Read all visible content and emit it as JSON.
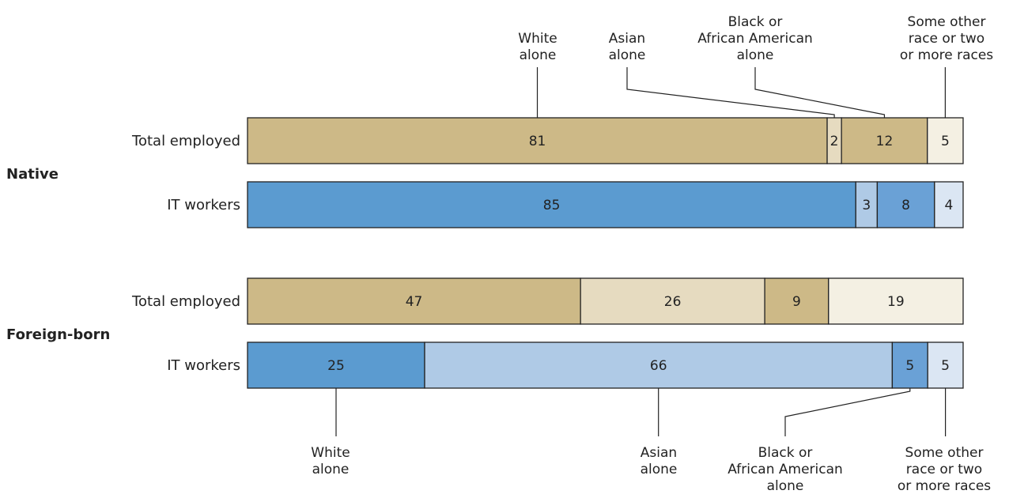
{
  "chart_data": {
    "type": "bar",
    "orientation": "horizontal",
    "stacked": true,
    "percent": true,
    "categories": [
      "White alone",
      "Asian alone",
      "Black or African American alone",
      "Some other race or two or more races"
    ],
    "category_labels": {
      "top": [
        [
          "White",
          "alone"
        ],
        [
          "Asian",
          "alone"
        ],
        [
          "Black or",
          "African American",
          "alone"
        ],
        [
          "Some other",
          "race or two",
          "or more races"
        ]
      ],
      "bottom": [
        [
          "White",
          "alone"
        ],
        [
          "Asian",
          "alone"
        ],
        [
          "Black or",
          "African American",
          "alone"
        ],
        [
          "Some other",
          "race or two",
          "or more races"
        ]
      ]
    },
    "groups": [
      {
        "label": "Native",
        "rows": [
          {
            "label": "Total employed",
            "palette": "tan",
            "values": [
              81,
              2,
              12,
              5
            ]
          },
          {
            "label": "IT workers",
            "palette": "blue",
            "values": [
              85,
              3,
              8,
              4
            ]
          }
        ]
      },
      {
        "label": "Foreign-born",
        "rows": [
          {
            "label": "Total employed",
            "palette": "tan",
            "values": [
              47,
              26,
              9,
              19
            ]
          },
          {
            "label": "IT workers",
            "palette": "blue",
            "values": [
              25,
              66,
              5,
              5
            ]
          }
        ]
      }
    ],
    "colors": {
      "tan": [
        "#cdb987",
        "#e6dbc0",
        "#cdb987",
        "#f4f0e3"
      ],
      "blue": [
        "#5b9bd0",
        "#afcae6",
        "#6aa1d6",
        "#dbe6f3"
      ],
      "stroke": "#222222"
    },
    "legend": "none",
    "grid": false
  }
}
